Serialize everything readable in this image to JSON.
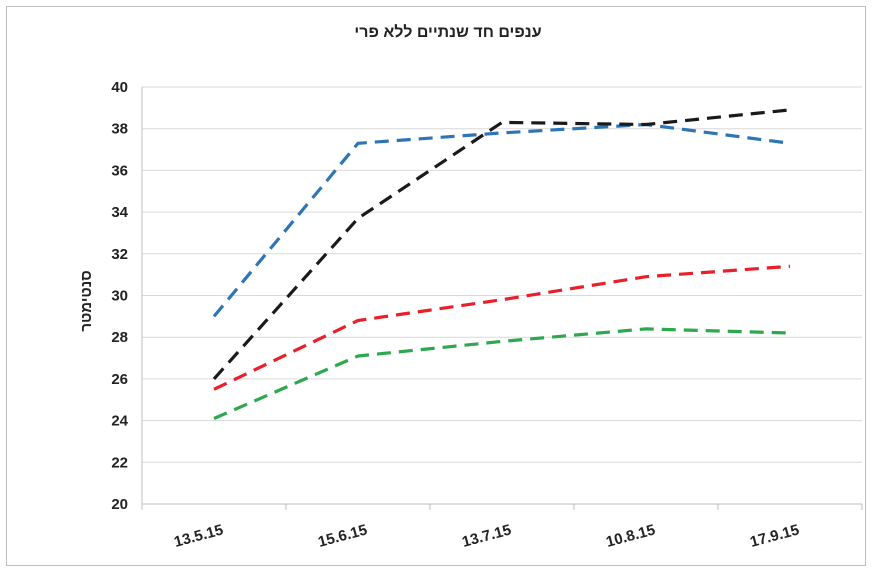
{
  "chart_data": {
    "type": "line",
    "title": "ענפים חד שנתיים ללא פרי",
    "xlabel": "",
    "ylabel": "סנטימטר",
    "categories": [
      "13.5.15",
      "15.6.15",
      "13.7.15",
      "10.8.15",
      "17.9.15"
    ],
    "ylim": [
      20,
      40
    ],
    "yticks": [
      20,
      22,
      24,
      26,
      28,
      30,
      32,
      34,
      36,
      38,
      40
    ],
    "grid": true,
    "legend": "none",
    "line_style": "dashed",
    "series": [
      {
        "color": "#2e75b6",
        "values": [
          29.0,
          37.3,
          37.8,
          38.2,
          37.3
        ]
      },
      {
        "color": "#1a1a1a",
        "values": [
          26.0,
          33.7,
          38.3,
          38.2,
          38.9
        ]
      },
      {
        "color": "#e8202a",
        "values": [
          25.5,
          28.8,
          29.8,
          30.9,
          31.4
        ]
      },
      {
        "color": "#2ea84f",
        "values": [
          24.1,
          27.1,
          27.8,
          28.4,
          28.2
        ]
      }
    ]
  }
}
